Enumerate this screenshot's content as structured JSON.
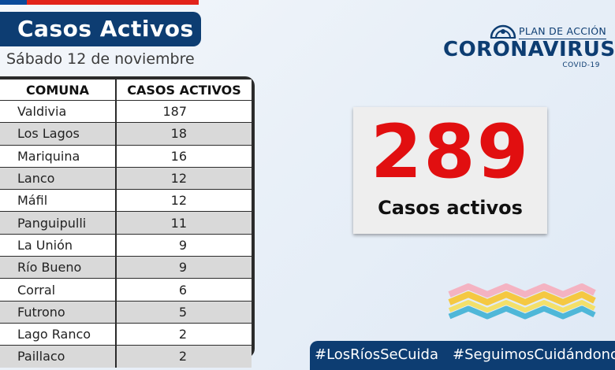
{
  "header": {
    "title": "Casos Activos",
    "date": "Sábado 12 de noviembre"
  },
  "table": {
    "col_comuna": "COMUNA",
    "col_casos": "CASOS ACTIVOS",
    "rows": [
      {
        "comuna": "Valdivia",
        "casos": "187"
      },
      {
        "comuna": "Los Lagos",
        "casos": "18"
      },
      {
        "comuna": "Mariquina",
        "casos": "16"
      },
      {
        "comuna": "Lanco",
        "casos": "12"
      },
      {
        "comuna": "Máfil",
        "casos": "12"
      },
      {
        "comuna": "Panguipulli",
        "casos": "11"
      },
      {
        "comuna": "La Unión",
        "casos": "9"
      },
      {
        "comuna": "Río Bueno",
        "casos": "9"
      },
      {
        "comuna": "Corral",
        "casos": "6"
      },
      {
        "comuna": "Futrono",
        "casos": "5"
      },
      {
        "comuna": "Lago Ranco",
        "casos": "2"
      },
      {
        "comuna": "Paillaco",
        "casos": "2"
      }
    ]
  },
  "logo": {
    "plan": "PLAN DE ACCIÓN",
    "word": "CORONAVIRUS",
    "sub": "COVID-19",
    "icon": "government-seal-icon"
  },
  "total": {
    "number": "289",
    "label": "Casos activos"
  },
  "footer": {
    "hashtag1": "#LosRíosSeCuida",
    "hashtag2": "#SeguimosCuidándonos"
  },
  "colors": {
    "navy": "#0d3d72",
    "red": "#e10f10",
    "flag_blue": "#0a4a9a",
    "flag_red": "#e2231a"
  }
}
